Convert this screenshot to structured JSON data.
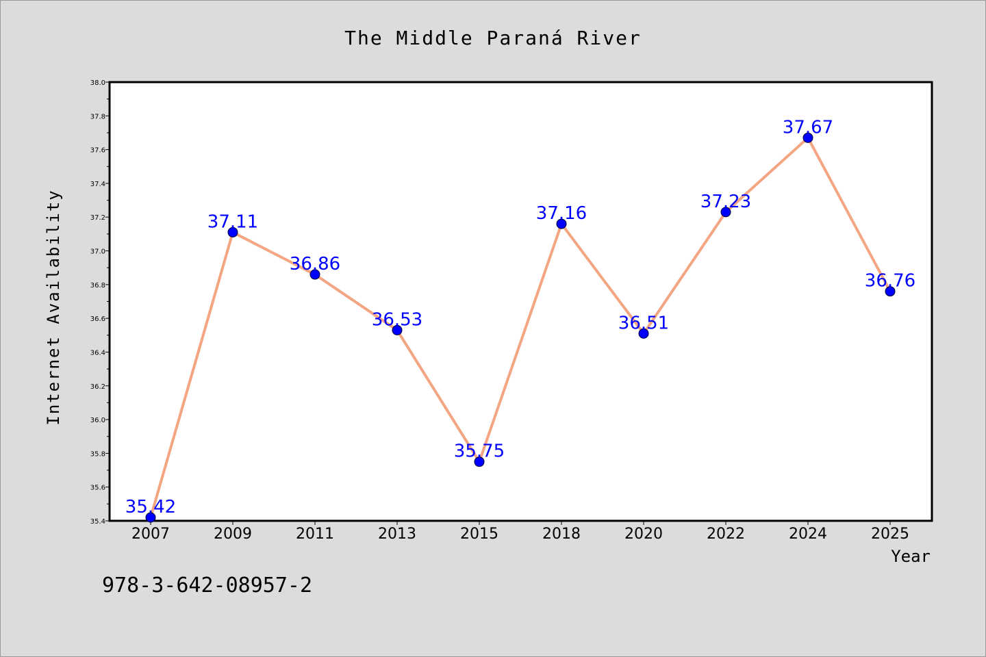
{
  "chart_data": {
    "type": "line",
    "title": "The Middle Paraná River",
    "xlabel": "Year",
    "ylabel": "Internet Availability",
    "categories": [
      "2007",
      "2009",
      "2011",
      "2013",
      "2015",
      "2018",
      "2020",
      "2022",
      "2024",
      "2025"
    ],
    "series": [
      {
        "values": [
          35.42,
          37.11,
          36.86,
          36.53,
          35.75,
          37.16,
          36.51,
          37.23,
          37.67,
          36.76
        ]
      }
    ],
    "data_labels": [
      "35.42",
      "37.11",
      "36.86",
      "36.53",
      "35.75",
      "37.16",
      "36.51",
      "37.23",
      "37.67",
      "36.76"
    ],
    "ylim": [
      35.4,
      38.0
    ],
    "y_ticks": [
      "35.4",
      "35.6",
      "35.8",
      "36.0",
      "36.2",
      "36.4",
      "36.6",
      "36.8",
      "37.0",
      "37.2",
      "37.4",
      "37.6",
      "37.8",
      "38.0"
    ],
    "grid": false,
    "legend": "none",
    "colors": {
      "line": "#f4a582",
      "marker": "#0000ff",
      "label": "#0000ff",
      "axis": "#000000",
      "background": "#dcdcdc",
      "plot_background": "#ffffff"
    }
  },
  "footer_text": "978-3-642-08957-2"
}
